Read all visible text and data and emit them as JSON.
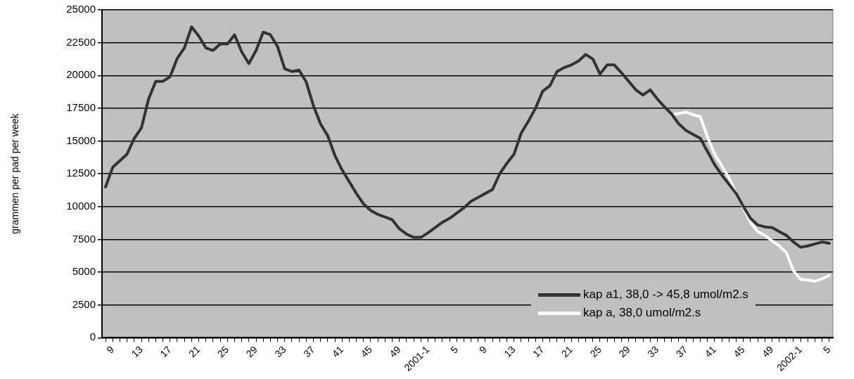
{
  "chart_data": {
    "type": "line",
    "ylabel": "grammen per pad per week",
    "categories": [
      null,
      "9",
      null,
      null,
      null,
      "13",
      null,
      null,
      null,
      "17",
      null,
      null,
      null,
      "21",
      null,
      null,
      null,
      "25",
      null,
      null,
      null,
      "29",
      null,
      null,
      null,
      "33",
      null,
      null,
      null,
      "37",
      null,
      null,
      null,
      "41",
      null,
      null,
      null,
      "45",
      null,
      null,
      null,
      "49",
      null,
      null,
      null,
      "2001-1",
      null,
      null,
      null,
      "5",
      null,
      null,
      null,
      "9",
      null,
      null,
      null,
      "13",
      null,
      null,
      null,
      "17",
      null,
      null,
      null,
      "21",
      null,
      null,
      null,
      "25",
      null,
      null,
      null,
      "29",
      null,
      null,
      null,
      "33",
      null,
      null,
      null,
      "37",
      null,
      null,
      null,
      "41",
      null,
      null,
      null,
      "45",
      null,
      null,
      null,
      "49",
      null,
      null,
      null,
      "2002-1",
      null,
      null,
      null,
      "5"
    ],
    "series": [
      {
        "name": "kap a1, 38,0 ->  45,8 umol/m2.s",
        "color": "#333333",
        "values": [
          11500,
          13000,
          13500,
          14000,
          15200,
          16000,
          18200,
          19550,
          19550,
          19900,
          21300,
          22100,
          23700,
          23000,
          22100,
          21900,
          22400,
          22400,
          23100,
          21800,
          20900,
          21900,
          23300,
          23100,
          22200,
          20500,
          20300,
          20400,
          19500,
          17700,
          16300,
          15400,
          13900,
          12800,
          11900,
          11000,
          10200,
          9700,
          9400,
          9200,
          9000,
          8300,
          7900,
          7650,
          7650,
          8000,
          8400,
          8800,
          9100,
          9500,
          9900,
          10400,
          10700,
          11000,
          11300,
          12500,
          13300,
          14000,
          15600,
          16500,
          17500,
          18800,
          19200,
          20300,
          20600,
          20800,
          21100,
          21600,
          21250,
          20100,
          20800,
          20800,
          20200,
          19550,
          18900,
          18500,
          18900,
          18200,
          17600,
          17050,
          16300,
          15800,
          15500,
          15200,
          14200,
          13200,
          12400,
          11700,
          11000,
          10000,
          9100,
          8600,
          8450,
          8400,
          8100,
          7800,
          7300,
          6900,
          7000,
          7150,
          7300,
          7200
        ]
      },
      {
        "name": "kap a, 38,0 umol/m2.s",
        "color": "#ffffff",
        "values": [
          null,
          null,
          null,
          null,
          null,
          null,
          null,
          null,
          null,
          null,
          null,
          null,
          null,
          null,
          null,
          null,
          null,
          null,
          null,
          null,
          null,
          null,
          null,
          null,
          null,
          null,
          null,
          null,
          null,
          null,
          null,
          null,
          null,
          null,
          null,
          null,
          null,
          null,
          null,
          null,
          null,
          null,
          null,
          null,
          null,
          null,
          null,
          null,
          null,
          null,
          null,
          null,
          null,
          null,
          null,
          null,
          null,
          null,
          null,
          null,
          null,
          null,
          null,
          null,
          null,
          null,
          null,
          null,
          null,
          null,
          null,
          null,
          null,
          null,
          null,
          null,
          null,
          null,
          null,
          17000,
          17100,
          17200,
          17000,
          16850,
          15300,
          14000,
          13100,
          12200,
          11000,
          9900,
          8800,
          8100,
          7800,
          7400,
          7000,
          6500,
          5100,
          4450,
          4400,
          4300,
          4500,
          4750
        ]
      }
    ],
    "ylim": [
      0,
      25000
    ],
    "yticks": [
      0,
      2500,
      5000,
      7500,
      10000,
      12500,
      15000,
      17500,
      20000,
      22500,
      25000
    ],
    "grid": "y",
    "legend": "bottom",
    "marker": "none",
    "line_style": "solid"
  }
}
